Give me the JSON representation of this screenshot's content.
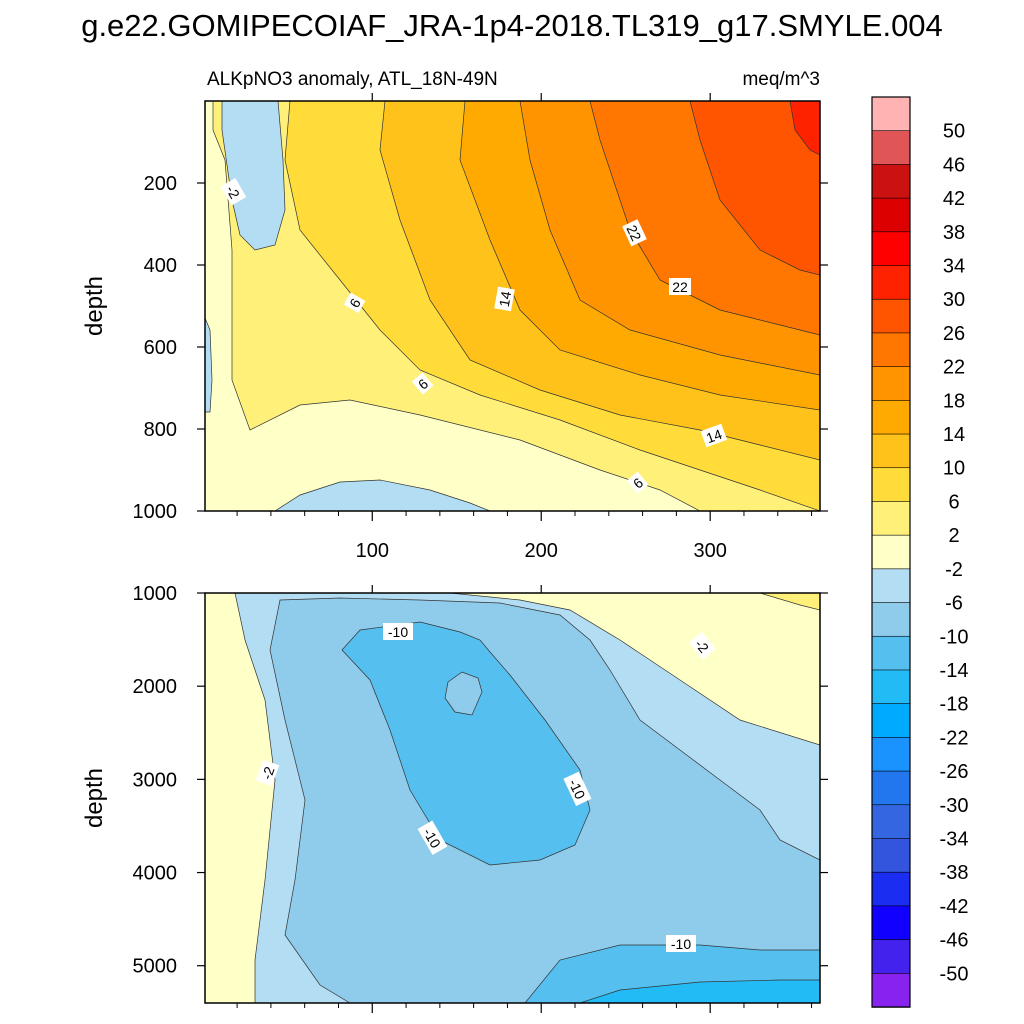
{
  "title": "g.e22.GOMIPECOIAF_JRA-1p4-2018.TL319_g17.SMYLE.004",
  "chart_data": {
    "type": "contour",
    "title": "g.e22.GOMIPECOIAF_JRA-1p4-2018.TL319_g17.SMYLE.004",
    "subtitle_left": "ALKpNO3 anomaly, ATL_18N-49N",
    "subtitle_right": "meq/m^3",
    "x_range": [
      1,
      365
    ],
    "x_ticks": [
      "100",
      "200",
      "300"
    ],
    "panels": [
      {
        "name": "upper",
        "ylabel": "depth",
        "ylim": [
          0,
          1000
        ],
        "y_ticks": [
          "200",
          "400",
          "600",
          "800",
          "1000"
        ],
        "contour_labels": [
          "-2",
          "6",
          "14",
          "22",
          "22",
          "6",
          "14",
          "6"
        ]
      },
      {
        "name": "lower",
        "ylabel": "depth",
        "ylim": [
          1000,
          5400
        ],
        "y_ticks": [
          "1000",
          "2000",
          "3000",
          "4000",
          "5000"
        ],
        "contour_labels": [
          "-10",
          "-2",
          "-2",
          "-10",
          "-10",
          "-10"
        ]
      }
    ],
    "colorbar": {
      "levels": [
        "50",
        "46",
        "42",
        "38",
        "34",
        "30",
        "26",
        "22",
        "18",
        "14",
        "10",
        "6",
        "2",
        "-2",
        "-6",
        "-10",
        "-14",
        "-18",
        "-22",
        "-26",
        "-30",
        "-34",
        "-38",
        "-42",
        "-46",
        "-50"
      ],
      "colors": [
        "#FFB3B3",
        "#E05555",
        "#CC1111",
        "#DD0000",
        "#FF0000",
        "#FF2200",
        "#FF5500",
        "#FF7700",
        "#FF9400",
        "#FFAA00",
        "#FFC21A",
        "#FFDC3A",
        "#FFF07A",
        "#FFFFC8",
        "#B3DDF2",
        "#8FCBEB",
        "#55C0F0",
        "#22BBF5",
        "#00AAFF",
        "#1A93FF",
        "#2277EE",
        "#3366E0",
        "#3355DD",
        "#1A2DF0",
        "#1100FF",
        "#4422EE",
        "#8822EE"
      ]
    }
  }
}
